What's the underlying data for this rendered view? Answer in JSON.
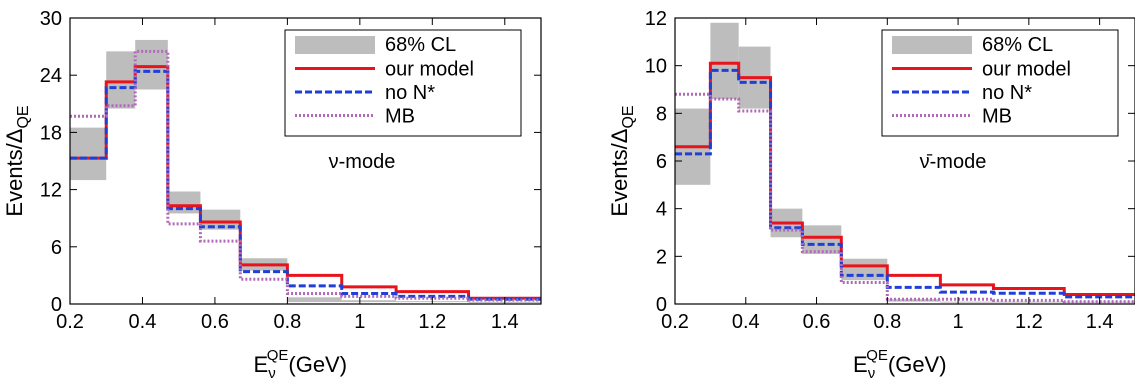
{
  "chart_data": [
    {
      "type": "line",
      "step": true,
      "xlim": [
        0.2,
        1.5
      ],
      "ylim": [
        0,
        30
      ],
      "xticks": [
        "0.2",
        "0.4",
        "0.6",
        "0.8",
        "1",
        "1.2",
        "1.4"
      ],
      "yticks": [
        "0",
        "6",
        "12",
        "18",
        "24",
        "30"
      ],
      "ylabel_main": "Events/Δ",
      "ylabel_sub": "QE",
      "xlabel_main": "E",
      "xlabel_sub": "ν",
      "xlabel_sup": "QE",
      "xlabel_tail": "(GeV)",
      "annotation": "ν-mode",
      "bin_edges": [
        0.2,
        0.3,
        0.38,
        0.47,
        0.56,
        0.67,
        0.8,
        0.95,
        1.1,
        1.3,
        1.5
      ],
      "band": {
        "name": "68% CL",
        "low": [
          13,
          20.5,
          22.5,
          9.5,
          7.8,
          3.5,
          0.2,
          0.2,
          0.2,
          0.2
        ],
        "high": [
          18.5,
          26.5,
          27.7,
          11.8,
          9.9,
          4.8,
          0.7,
          0.4,
          0.3,
          0.2
        ]
      },
      "series": [
        {
          "name": "our model",
          "color": "#e8141b",
          "style": "solid",
          "values": [
            15.3,
            23.3,
            24.9,
            10.3,
            8.6,
            4.1,
            3.0,
            1.8,
            1.3,
            0.6
          ]
        },
        {
          "name": "no N*",
          "color": "#1f3fd8",
          "style": "dashed",
          "values": [
            15.3,
            22.7,
            24.4,
            10.0,
            8.1,
            3.4,
            1.9,
            1.1,
            0.8,
            0.5
          ]
        },
        {
          "name": "MB",
          "color": "#b06bb8",
          "style": "dotted",
          "values": [
            19.7,
            20.8,
            26.5,
            8.4,
            6.6,
            2.6,
            1.1,
            0.8,
            0.6,
            0.4
          ]
        }
      ],
      "legend_position": "top-right",
      "legend": [
        "68% CL",
        "our model",
        "no N*",
        "MB"
      ]
    },
    {
      "type": "line",
      "step": true,
      "xlim": [
        0.2,
        1.5
      ],
      "ylim": [
        0,
        12
      ],
      "xticks": [
        "0.2",
        "0.4",
        "0.6",
        "0.8",
        "1",
        "1.2",
        "1.4"
      ],
      "yticks": [
        "0",
        "2",
        "4",
        "6",
        "8",
        "10",
        "12"
      ],
      "ylabel_main": "Events/Δ",
      "ylabel_sub": "QE",
      "xlabel_main": "E",
      "xlabel_sub": "ν",
      "xlabel_sup": "QE",
      "xlabel_tail": "(GeV)",
      "annotation": "ν̄-mode",
      "bin_edges": [
        0.2,
        0.3,
        0.38,
        0.47,
        0.56,
        0.67,
        0.8,
        0.95,
        1.1,
        1.3,
        1.5
      ],
      "band": {
        "name": "68% CL",
        "low": [
          5.0,
          8.6,
          8.2,
          2.8,
          2.1,
          1.0,
          0.1,
          0.1,
          0.1,
          0.1
        ],
        "high": [
          8.2,
          11.8,
          10.8,
          4.0,
          3.3,
          1.9,
          0.2,
          0.1,
          0.1,
          0.1
        ]
      },
      "series": [
        {
          "name": "our model",
          "color": "#e8141b",
          "style": "solid",
          "values": [
            6.6,
            10.1,
            9.5,
            3.4,
            2.8,
            1.6,
            1.2,
            0.8,
            0.65,
            0.4
          ]
        },
        {
          "name": "no N*",
          "color": "#1f3fd8",
          "style": "dashed",
          "values": [
            6.3,
            9.8,
            9.3,
            3.2,
            2.5,
            1.2,
            0.7,
            0.5,
            0.45,
            0.3
          ]
        },
        {
          "name": "MB",
          "color": "#b06bb8",
          "style": "dotted",
          "values": [
            8.8,
            8.6,
            8.1,
            3.1,
            2.2,
            0.9,
            0.2,
            0.2,
            0.15,
            0.1
          ]
        }
      ],
      "legend_position": "top-right",
      "legend": [
        "68% CL",
        "our model",
        "no N*",
        "MB"
      ]
    }
  ]
}
